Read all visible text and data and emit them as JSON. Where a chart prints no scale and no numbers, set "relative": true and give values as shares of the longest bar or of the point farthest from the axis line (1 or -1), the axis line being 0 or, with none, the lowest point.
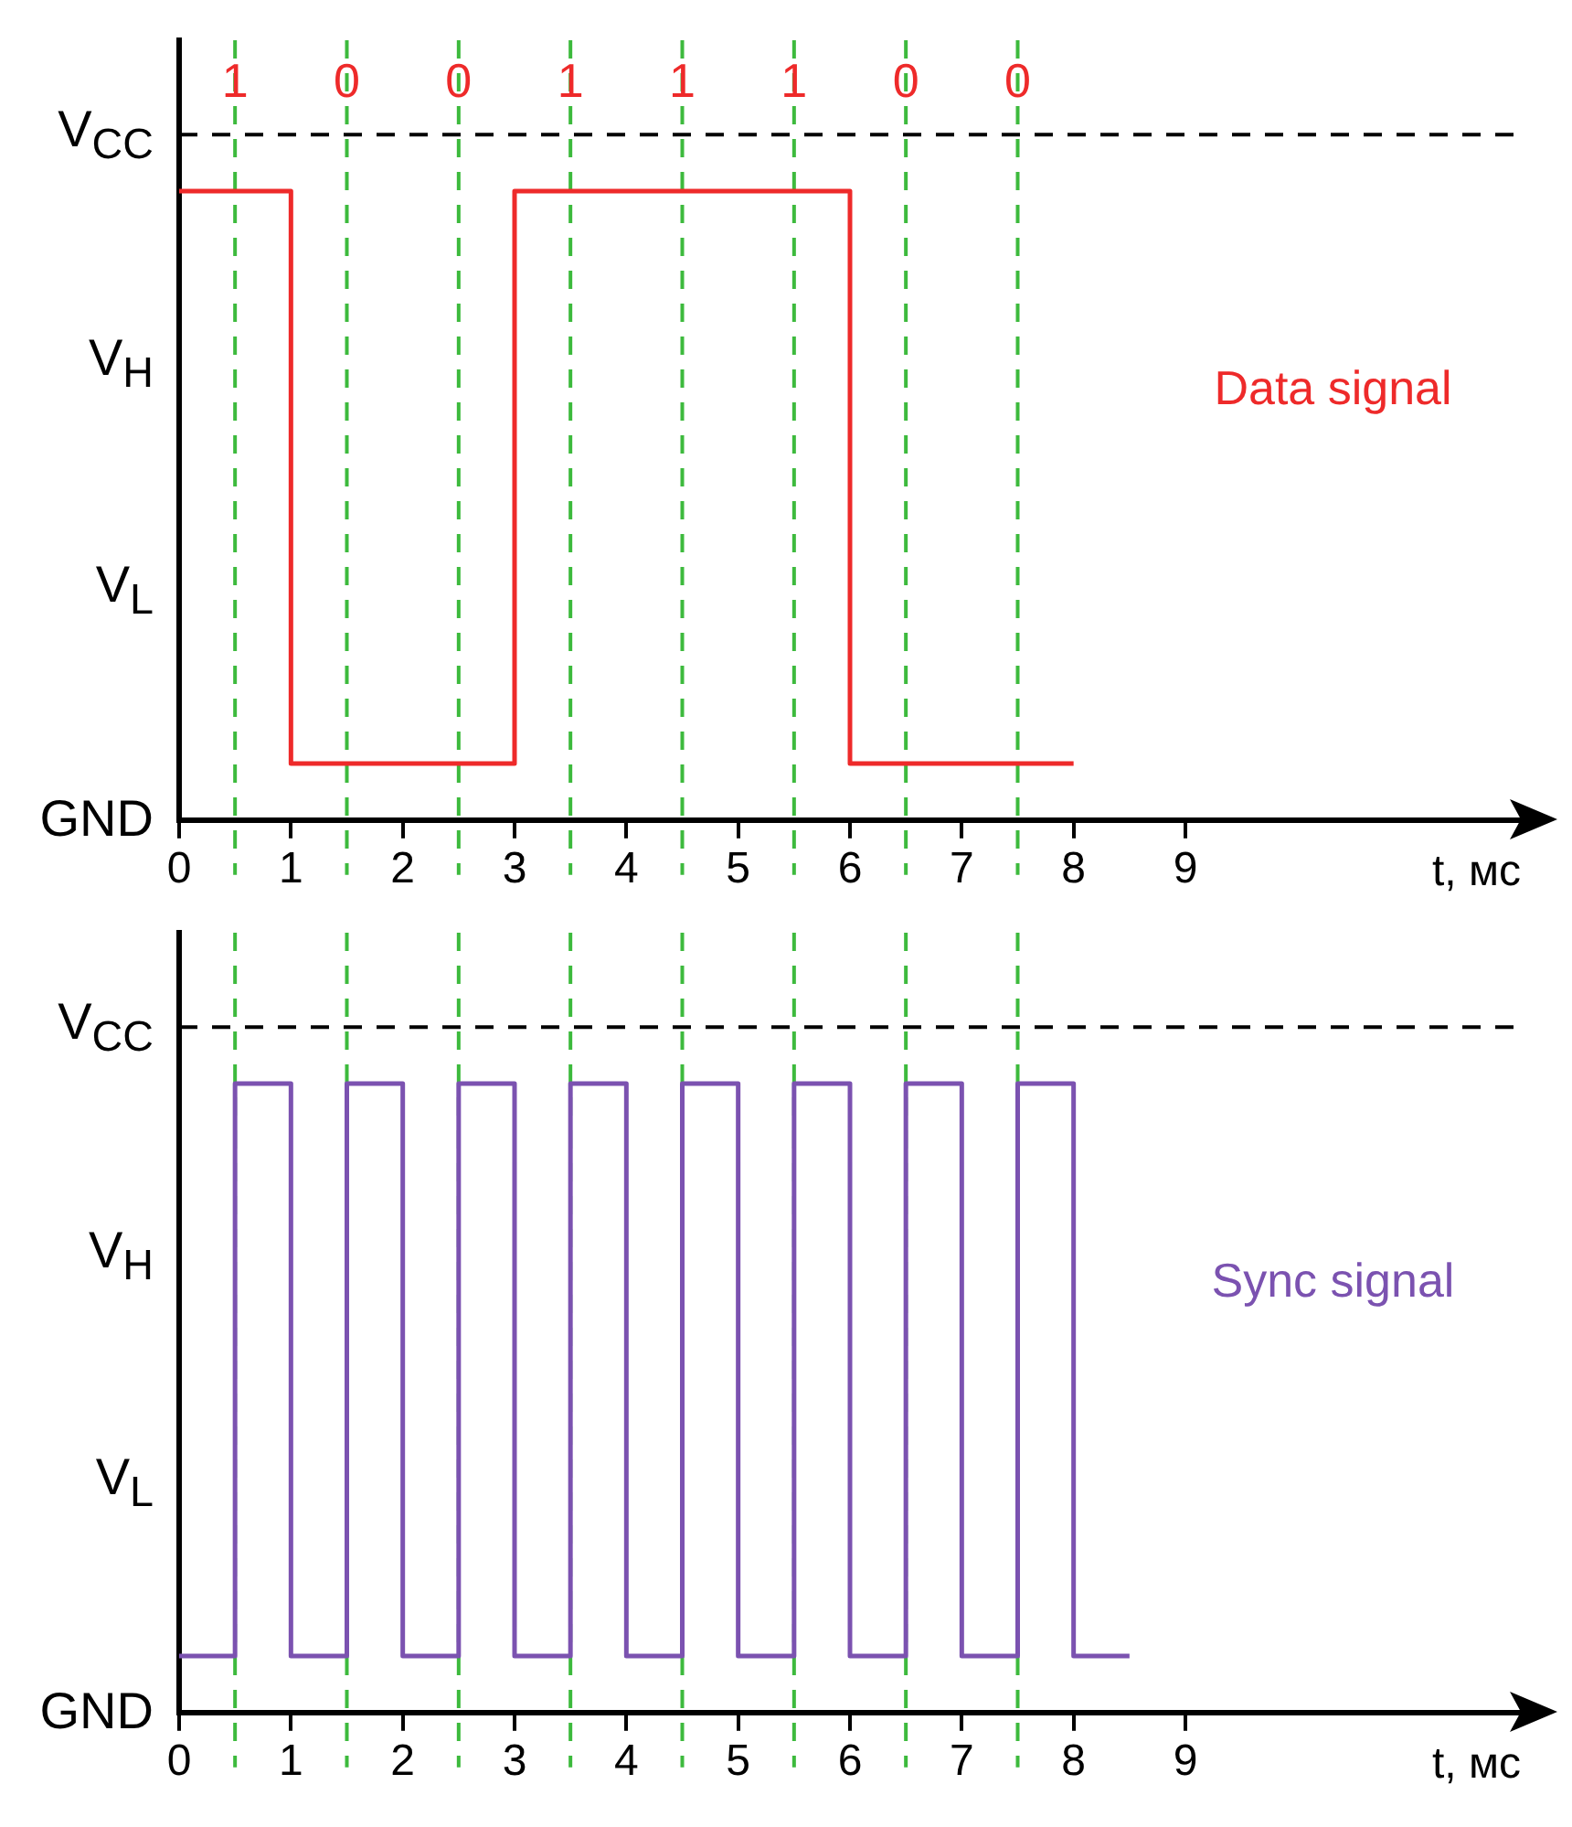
{
  "chart_data": [
    {
      "type": "step",
      "relative": true,
      "x": [
        0,
        1,
        3,
        6,
        8
      ],
      "xlabel": "t, мс",
      "xlim": [
        0,
        12
      ],
      "xticks": [
        0,
        1,
        2,
        3,
        4,
        5,
        6,
        7,
        8,
        9
      ],
      "series": [
        {
          "name": "Data signal",
          "color": "#ee2a2a",
          "values": [
            1,
            0.09,
            1,
            0.09,
            0.09
          ]
        }
      ],
      "ref_lines": [
        {
          "axis": "y",
          "value": 1.09,
          "label": "V$_{CC}$",
          "color": "#000000",
          "line_style": "dashed"
        },
        {
          "axis": "x",
          "value": 0.5,
          "color": "#3dba3d",
          "line_style": "dashed"
        },
        {
          "axis": "x",
          "value": 1.5,
          "color": "#3dba3d",
          "line_style": "dashed"
        },
        {
          "axis": "x",
          "value": 2.5,
          "color": "#3dba3d",
          "line_style": "dashed"
        },
        {
          "axis": "x",
          "value": 3.5,
          "color": "#3dba3d",
          "line_style": "dashed"
        },
        {
          "axis": "x",
          "value": 4.5,
          "color": "#3dba3d",
          "line_style": "dashed"
        },
        {
          "axis": "x",
          "value": 5.5,
          "color": "#3dba3d",
          "line_style": "dashed"
        },
        {
          "axis": "x",
          "value": 6.5,
          "color": "#3dba3d",
          "line_style": "dashed"
        },
        {
          "axis": "x",
          "value": 7.5,
          "color": "#3dba3d",
          "line_style": "dashed"
        }
      ],
      "annotations": [
        "GND",
        "V$_{L}$",
        "V$_{H}$",
        {
          "text": "1",
          "x": 0.5,
          "y": 1.17
        },
        {
          "text": "0",
          "x": 1.5,
          "y": 1.17
        },
        {
          "text": "0",
          "x": 2.5,
          "y": 1.17
        },
        {
          "text": "1",
          "x": 3.5,
          "y": 1.17
        },
        {
          "text": "1",
          "x": 4.5,
          "y": 1.17
        },
        {
          "text": "1",
          "x": 5.5,
          "y": 1.17
        },
        {
          "text": "0",
          "x": 6.5,
          "y": 1.17
        },
        {
          "text": "0",
          "x": 7.5,
          "y": 1.17
        }
      ],
      "legend": false
    },
    {
      "type": "step",
      "relative": true,
      "x": [
        0,
        0.5,
        1,
        1.5,
        2,
        2.5,
        3,
        3.5,
        4,
        4.5,
        5,
        5.5,
        6,
        6.5,
        7,
        7.5,
        8,
        8.5
      ],
      "xlabel": "t, мс",
      "xlim": [
        0,
        12
      ],
      "xticks": [
        0,
        1,
        2,
        3,
        4,
        5,
        6,
        7,
        8,
        9
      ],
      "series": [
        {
          "name": "Sync signal",
          "color": "#7b52b0",
          "values": [
            0.09,
            1,
            0.09,
            1,
            0.09,
            1,
            0.09,
            1,
            0.09,
            1,
            0.09,
            1,
            0.09,
            1,
            0.09,
            1,
            0.09,
            0.09
          ]
        }
      ],
      "ref_lines": [
        {
          "axis": "y",
          "value": 1.09,
          "label": "V$_{CC}$",
          "color": "#000000",
          "line_style": "dashed"
        },
        {
          "axis": "x",
          "value": 0.5,
          "color": "#3dba3d",
          "line_style": "dashed"
        },
        {
          "axis": "x",
          "value": 1.5,
          "color": "#3dba3d",
          "line_style": "dashed"
        },
        {
          "axis": "x",
          "value": 2.5,
          "color": "#3dba3d",
          "line_style": "dashed"
        },
        {
          "axis": "x",
          "value": 3.5,
          "color": "#3dba3d",
          "line_style": "dashed"
        },
        {
          "axis": "x",
          "value": 4.5,
          "color": "#3dba3d",
          "line_style": "dashed"
        },
        {
          "axis": "x",
          "value": 5.5,
          "color": "#3dba3d",
          "line_style": "dashed"
        },
        {
          "axis": "x",
          "value": 6.5,
          "color": "#3dba3d",
          "line_style": "dashed"
        },
        {
          "axis": "x",
          "value": 7.5,
          "color": "#3dba3d",
          "line_style": "dashed"
        }
      ],
      "annotations": [
        "GND",
        "V$_{L}$",
        "V$_{H}$"
      ],
      "legend": false
    }
  ]
}
